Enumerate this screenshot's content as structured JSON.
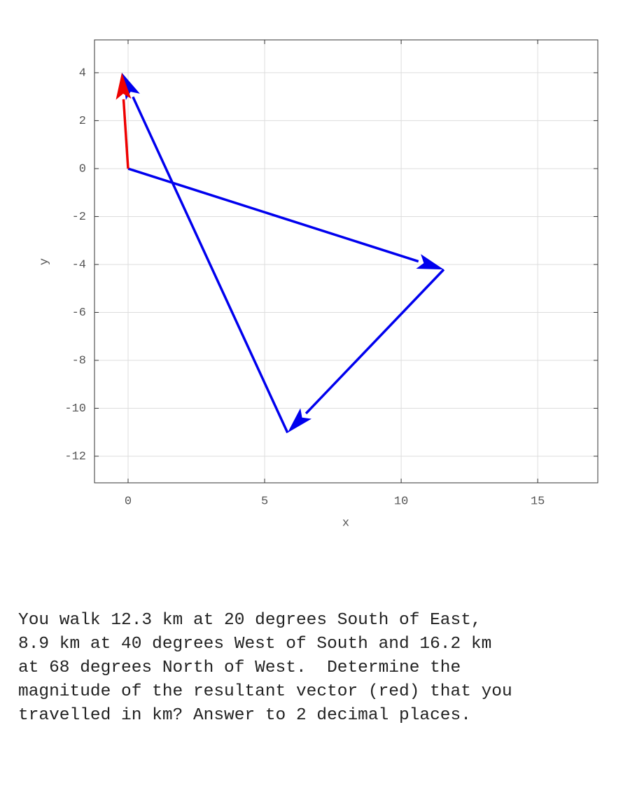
{
  "chart_data": {
    "type": "vector",
    "xlabel": "x",
    "ylabel": "y",
    "xlim": [
      -1.23,
      17.2
    ],
    "ylim": [
      -13.11,
      5.37
    ],
    "xticks": [
      0,
      5,
      10,
      15
    ],
    "yticks": [
      4,
      2,
      0,
      -2,
      -4,
      -6,
      -8,
      -10,
      -12
    ],
    "grid": true,
    "vectors": [
      {
        "color": "#0000ee",
        "x": [
          0,
          11.56
        ],
        "y": [
          0,
          -4.21
        ]
      },
      {
        "color": "#0000ee",
        "x": [
          11.56,
          5.84
        ],
        "y": [
          -4.21,
          -11.02
        ]
      },
      {
        "color": "#0000ee",
        "x": [
          5.84,
          -0.23
        ],
        "y": [
          -11.02,
          4.0
        ]
      },
      {
        "color": "#ee0000",
        "x": [
          0,
          -0.23
        ],
        "y": [
          0,
          4.0
        ]
      }
    ]
  },
  "question": {
    "lines": [
      "You walk 12.3 km at 20 degrees South of East,",
      "8.9 km at 40 degrees West of South and 16.2 km",
      "at 68 degrees North of West.  Determine the",
      "magnitude of the resultant vector (red) that you",
      "travelled in km? Answer to 2 decimal places."
    ]
  }
}
